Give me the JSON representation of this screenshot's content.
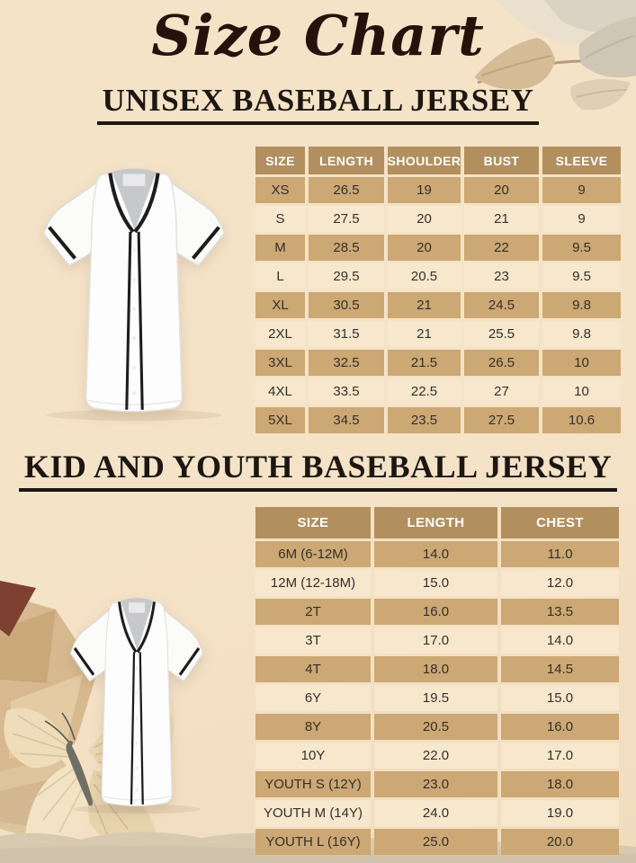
{
  "title": "Size Chart",
  "sections": {
    "unisex": {
      "heading": "UNISEX BASEBALL JERSEY"
    },
    "kids": {
      "heading": "KID AND YOUTH BASEBALL JERSEY"
    }
  },
  "tables": {
    "unisex": {
      "headers": [
        "SIZE",
        "LENGTH",
        "SHOULDER",
        "BUST",
        "SLEEVE"
      ],
      "rows": [
        [
          "XS",
          "26.5",
          "19",
          "20",
          "9"
        ],
        [
          "S",
          "27.5",
          "20",
          "21",
          "9"
        ],
        [
          "M",
          "28.5",
          "20",
          "22",
          "9.5"
        ],
        [
          "L",
          "29.5",
          "20.5",
          "23",
          "9.5"
        ],
        [
          "XL",
          "30.5",
          "21",
          "24.5",
          "9.8"
        ],
        [
          "2XL",
          "31.5",
          "21",
          "25.5",
          "9.8"
        ],
        [
          "3XL",
          "32.5",
          "21.5",
          "26.5",
          "10"
        ],
        [
          "4XL",
          "33.5",
          "22.5",
          "27",
          "10"
        ],
        [
          "5XL",
          "34.5",
          "23.5",
          "27.5",
          "10.6"
        ]
      ]
    },
    "kids": {
      "headers": [
        "SIZE",
        "LENGTH",
        "CHEST"
      ],
      "rows": [
        [
          "6M (6-12M)",
          "14.0",
          "11.0"
        ],
        [
          "12M (12-18M)",
          "15.0",
          "12.0"
        ],
        [
          "2T",
          "16.0",
          "13.5"
        ],
        [
          "3T",
          "17.0",
          "14.0"
        ],
        [
          "4T",
          "18.0",
          "14.5"
        ],
        [
          "6Y",
          "19.5",
          "15.0"
        ],
        [
          "8Y",
          "20.5",
          "16.0"
        ],
        [
          "10Y",
          "22.0",
          "17.0"
        ],
        [
          "YOUTH S (12Y)",
          "23.0",
          "18.0"
        ],
        [
          "YOUTH M (14Y)",
          "24.0",
          "19.0"
        ],
        [
          "YOUTH L (16Y)",
          "25.0",
          "20.0"
        ]
      ]
    }
  },
  "images": {
    "adult_jersey": "white-baseball-jersey-black-piping",
    "kid_jersey": "white-baseball-jersey-black-piping"
  },
  "decorations": {
    "top_right": "dried-paper-leaves",
    "bottom_left": "crumpled-paper-and-butterfly",
    "bottom": "torn-paper-strip"
  },
  "colors": {
    "background": "#f5e3c8",
    "background_bottom": "#f1dcbe",
    "table_header_bg": "#b28f5e",
    "table_header_text": "#ffffff",
    "row_dark": "#cca874",
    "row_light": "#f6e7cd",
    "cell_text": "#33302a",
    "heading_text": "#1d1712",
    "title_text": "#26120b"
  }
}
